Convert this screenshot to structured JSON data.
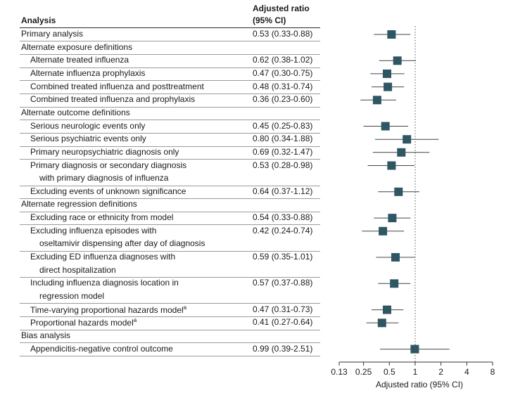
{
  "header": {
    "analysis": "Analysis",
    "ratio_line1": "Adjusted ratio",
    "ratio_line2": "(95% CI)"
  },
  "chart_data": {
    "type": "forest",
    "xlabel": "Adjusted ratio (95% CI)",
    "xscale": "log",
    "xlim": [
      0.13,
      8
    ],
    "xticks": [
      0.13,
      0.25,
      0.5,
      1,
      2,
      4,
      8
    ],
    "xtick_labels": [
      "0.13",
      "0.25",
      "0.5",
      "1",
      "2",
      "4",
      "8"
    ],
    "reference_line": 1,
    "rows": [
      {
        "label": "Primary analysis",
        "indent": 0,
        "ratio": "0.53 (0.33-0.88)",
        "est": 0.53,
        "lo": 0.33,
        "hi": 0.88
      },
      {
        "label": "Alternate exposure definitions",
        "indent": 0
      },
      {
        "label": "Alternate treated influenza",
        "indent": 1,
        "ratio": "0.62 (0.38-1.02)",
        "est": 0.62,
        "lo": 0.38,
        "hi": 1.02
      },
      {
        "label": "Alternate influenza prophylaxis",
        "indent": 1,
        "ratio": "0.47 (0.30-0.75)",
        "est": 0.47,
        "lo": 0.3,
        "hi": 0.75
      },
      {
        "label": "Combined treated influenza and posttreatment",
        "indent": 1,
        "ratio": "0.48 (0.31-0.74)",
        "est": 0.48,
        "lo": 0.31,
        "hi": 0.74
      },
      {
        "label": "Combined treated influenza and prophylaxis",
        "indent": 1,
        "ratio": "0.36 (0.23-0.60)",
        "est": 0.36,
        "lo": 0.23,
        "hi": 0.6
      },
      {
        "label": "Alternate outcome definitions",
        "indent": 0
      },
      {
        "label": "Serious neurologic events only",
        "indent": 1,
        "ratio": "0.45 (0.25-0.83)",
        "est": 0.45,
        "lo": 0.25,
        "hi": 0.83
      },
      {
        "label": "Serious psychiatric events only",
        "indent": 1,
        "ratio": "0.80 (0.34-1.88)",
        "est": 0.8,
        "lo": 0.34,
        "hi": 1.88
      },
      {
        "label": "Primary neuropsychiatric diagnosis only",
        "indent": 1,
        "ratio": "0.69 (0.32-1.47)",
        "est": 0.69,
        "lo": 0.32,
        "hi": 1.47
      },
      {
        "label": "Primary diagnosis or secondary diagnosis",
        "label2": "with primary diagnosis of influenza",
        "indent": 1,
        "ratio": "0.53 (0.28-0.98)",
        "est": 0.53,
        "lo": 0.28,
        "hi": 0.98
      },
      {
        "label": "Excluding events of unknown significance",
        "indent": 1,
        "ratio": "0.64 (0.37-1.12)",
        "est": 0.64,
        "lo": 0.37,
        "hi": 1.12
      },
      {
        "label": "Alternate regression definitions",
        "indent": 0
      },
      {
        "label": "Excluding race or ethnicity from model",
        "indent": 1,
        "ratio": "0.54 (0.33-0.88)",
        "est": 0.54,
        "lo": 0.33,
        "hi": 0.88
      },
      {
        "label": "Excluding influenza episodes with",
        "label2": "oseltamivir dispensing after day of diagnosis",
        "indent": 1,
        "ratio": "0.42 (0.24-0.74)",
        "est": 0.42,
        "lo": 0.24,
        "hi": 0.74
      },
      {
        "label": "Excluding ED influenza diagnoses with",
        "label2": "direct hospitalization",
        "indent": 1,
        "ratio": "0.59 (0.35-1.01)",
        "est": 0.59,
        "lo": 0.35,
        "hi": 1.01
      },
      {
        "label": "Including influenza diagnosis location in",
        "label2": "regression model",
        "indent": 1,
        "ratio": "0.57 (0.37-0.88)",
        "est": 0.57,
        "lo": 0.37,
        "hi": 0.88
      },
      {
        "label": "Time-varying proportional hazards model",
        "sup": "a",
        "indent": 1,
        "ratio": "0.47 (0.31-0.73)",
        "est": 0.47,
        "lo": 0.31,
        "hi": 0.73
      },
      {
        "label": "Proportional hazards model",
        "sup": "a",
        "indent": 1,
        "ratio": "0.41 (0.27-0.64)",
        "est": 0.41,
        "lo": 0.27,
        "hi": 0.64
      },
      {
        "label": "Bias analysis",
        "indent": 0
      },
      {
        "label": "Appendicitis-negative control outcome",
        "indent": 1,
        "ratio": "0.99 (0.39-2.51)",
        "est": 0.99,
        "lo": 0.39,
        "hi": 2.51
      }
    ],
    "colors": {
      "marker": "#2f5663",
      "ci_line": "#444444",
      "reference_line": "#555555",
      "text": "#1a1a1a"
    }
  }
}
